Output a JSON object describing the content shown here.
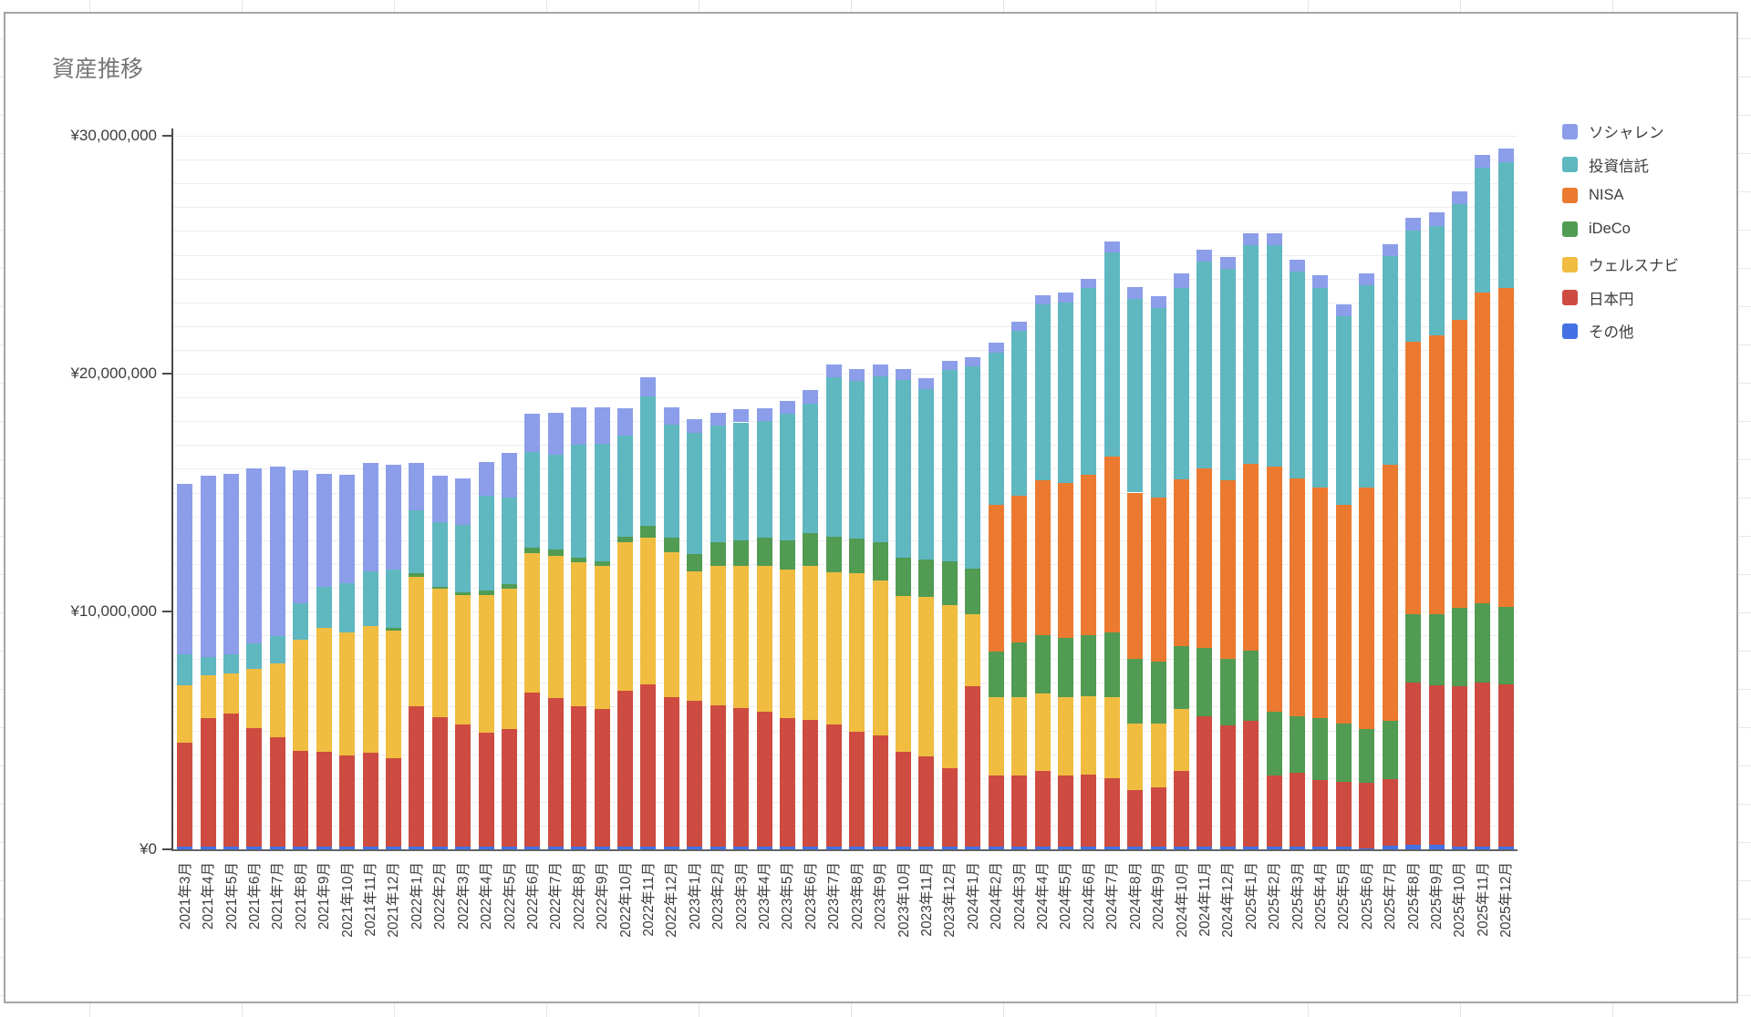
{
  "chart": {
    "title": "資産推移",
    "y_axis": {
      "tick_labels": [
        "¥0",
        "¥10,000,000",
        "¥20,000,000",
        "¥30,000,000"
      ],
      "tick_values_millions": [
        0,
        10,
        20,
        30
      ]
    },
    "colors": {
      "title_text": "#757575",
      "axis_text": "#3c3c3c",
      "gridline": "#ededed",
      "axis_line": "#4a4a4a",
      "card_border": "#a5a5a5"
    }
  },
  "chart_data": {
    "type": "bar",
    "stacked": true,
    "title": "資産推移",
    "xlabel": "",
    "ylabel": "",
    "unit": "JPY millions",
    "ylim": [
      0,
      30
    ],
    "grid": "horizontal, every 1,000,000",
    "legend_position": "right",
    "stack_bottom_to_top": [
      "その他",
      "日本円",
      "ウェルスナビ",
      "iDeCo",
      "NISA",
      "投資信託",
      "ソシャレン"
    ],
    "categories": [
      "2021年3月",
      "2021年4月",
      "2021年5月",
      "2021年6月",
      "2021年7月",
      "2021年8月",
      "2021年9月",
      "2021年10月",
      "2021年11月",
      "2021年12月",
      "2022年1月",
      "2022年2月",
      "2022年3月",
      "2022年4月",
      "2022年5月",
      "2022年6月",
      "2022年7月",
      "2022年8月",
      "2022年9月",
      "2022年10月",
      "2022年11月",
      "2022年12月",
      "2023年1月",
      "2023年2月",
      "2023年3月",
      "2023年4月",
      "2023年5月",
      "2023年6月",
      "2023年7月",
      "2023年8月",
      "2023年9月",
      "2023年10月",
      "2023年11月",
      "2023年12月",
      "2024年1月",
      "2024年2月",
      "2024年3月",
      "2024年4月",
      "2024年5月",
      "2024年6月",
      "2024年7月",
      "2024年8月",
      "2024年9月",
      "2024年10月",
      "2024年11月",
      "2024年12月",
      "2025年1月",
      "2025年2月",
      "2025年3月",
      "2025年4月",
      "2025年5月",
      "2025年6月",
      "2025年7月",
      "2025年8月",
      "2025年9月",
      "2025年10月",
      "2025年11月",
      "2025年12月"
    ],
    "series": [
      {
        "name": "ソシャレン",
        "color": "#8C9EEA",
        "values": [
          7.15,
          7.6,
          7.6,
          7.35,
          7.15,
          5.6,
          4.75,
          4.55,
          4.55,
          4.4,
          2.0,
          1.95,
          1.95,
          1.45,
          1.85,
          1.6,
          1.75,
          1.6,
          1.55,
          1.15,
          0.8,
          0.75,
          0.6,
          0.55,
          0.55,
          0.55,
          0.55,
          0.55,
          0.55,
          0.5,
          0.5,
          0.45,
          0.45,
          0.4,
          0.4,
          0.4,
          0.4,
          0.4,
          0.4,
          0.4,
          0.45,
          0.5,
          0.5,
          0.6,
          0.5,
          0.5,
          0.5,
          0.5,
          0.5,
          0.55,
          0.5,
          0.5,
          0.5,
          0.55,
          0.6,
          0.55,
          0.55,
          0.55
        ]
      },
      {
        "name": "投資信託",
        "color": "#5FB7C0",
        "values": [
          1.3,
          0.8,
          0.8,
          1.05,
          1.15,
          1.55,
          1.75,
          2.1,
          2.3,
          2.45,
          2.65,
          2.7,
          2.85,
          3.95,
          3.65,
          4.0,
          4.0,
          4.75,
          4.95,
          4.25,
          5.45,
          4.75,
          5.1,
          4.9,
          4.95,
          4.9,
          5.3,
          5.45,
          6.7,
          6.65,
          7.0,
          7.5,
          7.15,
          8.05,
          8.5,
          6.4,
          6.95,
          7.4,
          7.6,
          7.85,
          8.6,
          8.15,
          7.95,
          8.05,
          8.7,
          8.9,
          9.2,
          9.3,
          8.7,
          8.4,
          7.9,
          8.5,
          8.8,
          4.65,
          4.6,
          4.85,
          5.25,
          5.3
        ]
      },
      {
        "name": "NISA",
        "color": "#EB7A30",
        "values": [
          0,
          0,
          0,
          0,
          0,
          0,
          0,
          0,
          0,
          0,
          0,
          0,
          0,
          0,
          0,
          0,
          0,
          0,
          0,
          0,
          0,
          0,
          0,
          0,
          0,
          0,
          0,
          0,
          0,
          0,
          0,
          0,
          0,
          0,
          0,
          6.2,
          6.15,
          6.5,
          6.5,
          6.75,
          7.4,
          7.0,
          6.9,
          7.0,
          7.55,
          7.5,
          7.85,
          10.3,
          10.0,
          9.7,
          9.2,
          10.15,
          10.75,
          11.45,
          11.7,
          12.1,
          13.05,
          13.4
        ]
      },
      {
        "name": "iDeCo",
        "color": "#519B53",
        "values": [
          0,
          0,
          0,
          0,
          0,
          0,
          0,
          0,
          0,
          0.1,
          0.15,
          0.1,
          0.1,
          0.2,
          0.2,
          0.25,
          0.25,
          0.2,
          0.2,
          0.25,
          0.5,
          0.6,
          0.7,
          1.0,
          1.1,
          1.2,
          1.25,
          1.4,
          1.5,
          1.45,
          1.6,
          1.6,
          1.6,
          1.85,
          1.9,
          1.9,
          2.3,
          2.45,
          2.5,
          2.55,
          2.7,
          2.7,
          2.6,
          2.65,
          2.85,
          2.8,
          2.95,
          2.7,
          2.4,
          2.6,
          2.45,
          2.25,
          2.45,
          2.9,
          3.0,
          3.3,
          3.35,
          3.25
        ]
      },
      {
        "name": "ウェルスナビ",
        "color": "#F0BD41",
        "values": [
          2.4,
          1.8,
          1.7,
          2.5,
          3.1,
          4.65,
          5.2,
          5.15,
          5.35,
          5.35,
          5.45,
          5.4,
          5.45,
          5.8,
          5.9,
          5.85,
          6.0,
          6.05,
          6.0,
          6.25,
          6.15,
          6.1,
          5.45,
          5.85,
          5.95,
          6.1,
          6.25,
          6.45,
          6.4,
          6.65,
          6.5,
          6.55,
          6.7,
          6.85,
          3.05,
          3.3,
          3.3,
          3.25,
          3.3,
          3.3,
          3.4,
          2.8,
          2.7,
          2.6,
          0,
          0,
          0,
          0,
          0,
          0,
          0,
          0,
          0,
          0,
          0,
          0,
          0,
          0
        ]
      },
      {
        "name": "日本円",
        "color": "#CD4B40",
        "values": [
          4.4,
          5.4,
          5.6,
          5.0,
          4.6,
          4.05,
          4.0,
          3.85,
          3.95,
          3.75,
          5.9,
          5.45,
          5.15,
          4.8,
          4.95,
          6.5,
          6.25,
          5.9,
          5.8,
          6.55,
          6.85,
          6.3,
          6.15,
          5.95,
          5.85,
          5.7,
          5.4,
          5.35,
          5.15,
          4.85,
          4.7,
          4.0,
          3.8,
          3.3,
          6.75,
          3.0,
          3.0,
          3.2,
          3.0,
          3.05,
          2.9,
          2.4,
          2.5,
          3.2,
          5.5,
          5.1,
          5.3,
          3.0,
          3.1,
          2.8,
          2.75,
          2.75,
          2.8,
          6.8,
          6.7,
          6.75,
          6.9,
          6.85
        ]
      },
      {
        "name": "その他",
        "color": "#4472E4",
        "values": [
          0.1,
          0.1,
          0.1,
          0.1,
          0.1,
          0.1,
          0.1,
          0.1,
          0.1,
          0.1,
          0.1,
          0.1,
          0.1,
          0.1,
          0.1,
          0.1,
          0.1,
          0.1,
          0.1,
          0.1,
          0.1,
          0.1,
          0.1,
          0.1,
          0.1,
          0.1,
          0.1,
          0.1,
          0.1,
          0.1,
          0.1,
          0.1,
          0.1,
          0.1,
          0.1,
          0.1,
          0.1,
          0.1,
          0.1,
          0.1,
          0.1,
          0.1,
          0.1,
          0.1,
          0.1,
          0.1,
          0.1,
          0.1,
          0.1,
          0.1,
          0.1,
          0.05,
          0.15,
          0.2,
          0.2,
          0.12,
          0.1,
          0.1
        ]
      }
    ]
  }
}
